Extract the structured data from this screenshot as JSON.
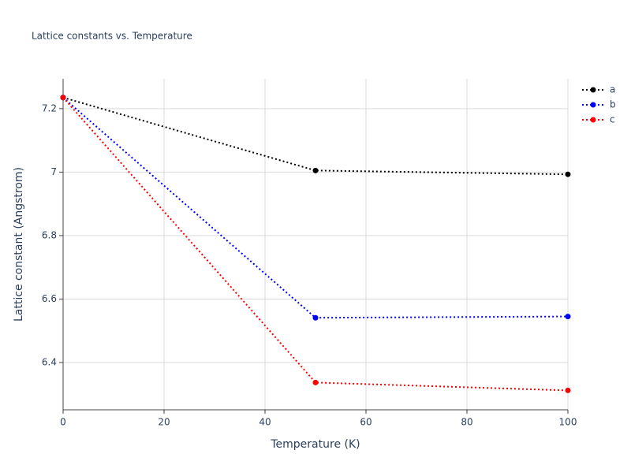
{
  "chart_data": {
    "type": "line",
    "title": "Lattice constants vs. Temperature",
    "x_label": "Temperature (K)",
    "y_label": "Lattice constant (Angstrom)",
    "x": [
      0,
      50,
      100
    ],
    "series": [
      {
        "name": "a",
        "color": "#000000",
        "values": [
          7.235,
          7.005,
          6.993
        ]
      },
      {
        "name": "b",
        "color": "#0000ff",
        "values": [
          7.235,
          6.541,
          6.545
        ]
      },
      {
        "name": "c",
        "color": "#ff0000",
        "values": [
          7.235,
          6.337,
          6.312
        ]
      }
    ],
    "xlim": [
      0,
      100
    ],
    "xticks": [
      0,
      20,
      40,
      60,
      80,
      100
    ],
    "ylim": [
      6.251,
      7.294
    ],
    "yticks": [
      6.4,
      6.6,
      6.8,
      7,
      7.2
    ],
    "grid": true,
    "legend": "right"
  }
}
